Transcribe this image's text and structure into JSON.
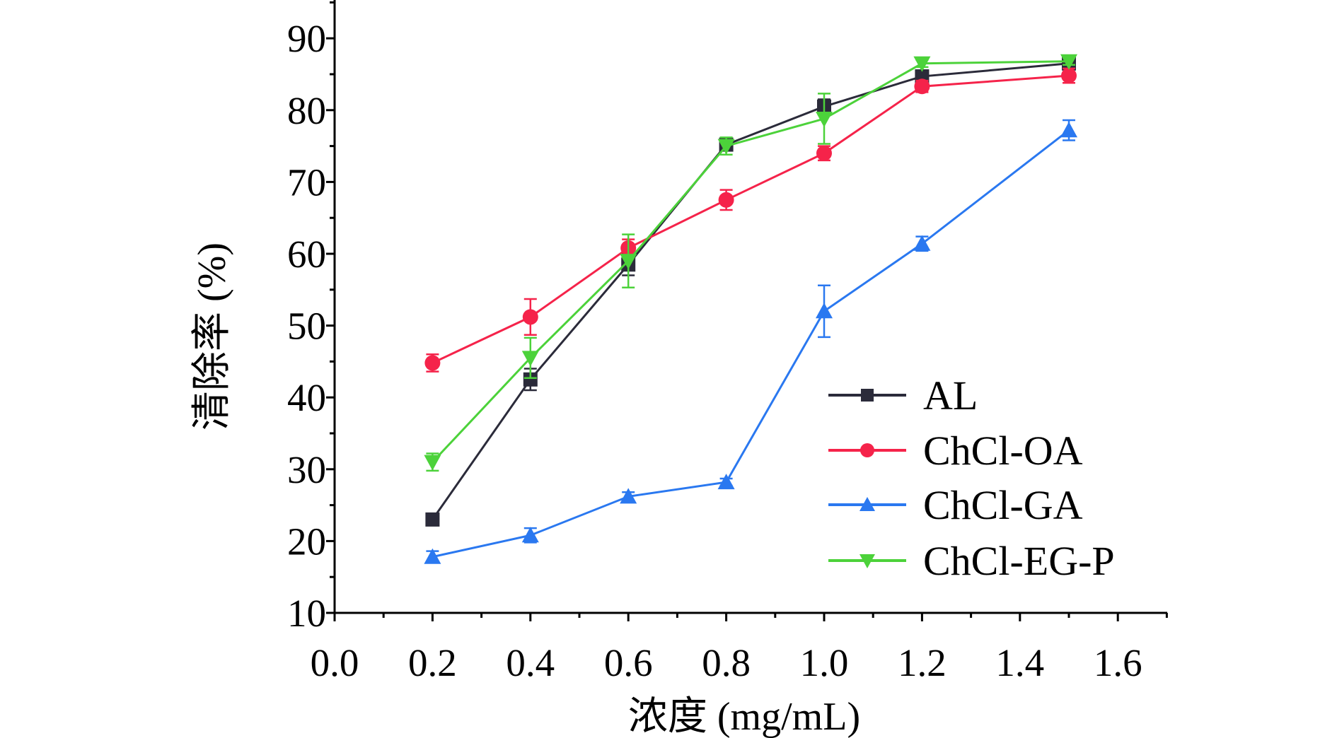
{
  "chart_data": {
    "type": "line",
    "title": "",
    "xlabel": "浓度 (mg/mL)",
    "ylabel": "清除率 (%)",
    "xlim": [
      0,
      1.7
    ],
    "ylim": [
      10,
      95
    ],
    "xticks": [
      "0.0",
      "0.2",
      "0.4",
      "0.6",
      "0.8",
      "1.0",
      "1.2",
      "1.4",
      "1.6"
    ],
    "yticks": [
      "10",
      "20",
      "30",
      "40",
      "50",
      "60",
      "70",
      "80",
      "90"
    ],
    "grid": false,
    "legend_position": "bottom-right",
    "x": [
      0.2,
      0.4,
      0.6,
      0.8,
      1.0,
      1.2,
      1.5
    ],
    "series": [
      {
        "name": "AL",
        "color": "#2b2b3a",
        "marker": "square",
        "values": [
          23.0,
          42.5,
          58.5,
          75.2,
          80.5,
          84.7,
          86.5
        ],
        "errors": [
          0.6,
          1.5,
          1.5,
          0.8,
          1.0,
          0.8,
          0.7
        ]
      },
      {
        "name": "ChCl-OA",
        "color": "#f5234a",
        "marker": "circle",
        "values": [
          44.8,
          51.2,
          60.8,
          67.5,
          74.0,
          83.3,
          84.8
        ],
        "errors": [
          1.2,
          2.5,
          1.2,
          1.4,
          1.0,
          0.8,
          1.0
        ]
      },
      {
        "name": "ChCl-GA",
        "color": "#2a78f0",
        "marker": "triangle-up",
        "values": [
          17.8,
          20.8,
          26.2,
          28.2,
          52.0,
          61.4,
          77.2
        ],
        "errors": [
          0.8,
          1.0,
          0.6,
          0.5,
          3.6,
          1.0,
          1.4
        ]
      },
      {
        "name": "ChCl-EG-P",
        "color": "#4cd23a",
        "marker": "triangle-down",
        "values": [
          31.0,
          45.5,
          59.0,
          75.0,
          78.8,
          86.5,
          86.8
        ],
        "errors": [
          1.2,
          2.8,
          3.7,
          1.2,
          3.5,
          0.5,
          0.5
        ]
      }
    ]
  }
}
